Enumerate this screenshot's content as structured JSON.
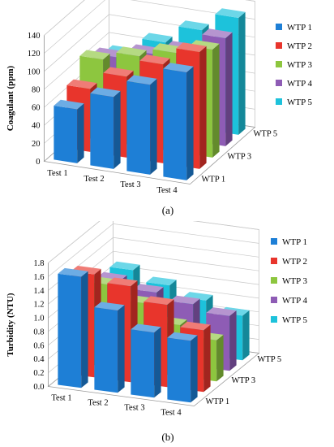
{
  "series_colors": {
    "WTP 1": "#1E7FD6",
    "WTP 2": "#E8352C",
    "WTP 3": "#8DC63F",
    "WTP 4": "#8E5CB5",
    "WTP 5": "#1DC2DB"
  },
  "chart_data": [
    {
      "type": "bar",
      "panel_label": "(a)",
      "ylabel": "Coagulant (ppm)",
      "ylim": [
        0,
        140
      ],
      "yticks": [
        0,
        20,
        40,
        60,
        80,
        100,
        120,
        140
      ],
      "ytick_labels": [
        "0",
        "20",
        "40",
        "60",
        "80",
        "100",
        "120",
        "140"
      ],
      "categories": [
        "Test 1",
        "Test 2",
        "Test 3",
        "Test 4"
      ],
      "depth_labels": [
        "WTP 1",
        "WTP 3",
        "WTP 5"
      ],
      "legend_position": "right",
      "series": [
        {
          "name": "WTP 1",
          "values": [
            60,
            80,
            100,
            120
          ]
        },
        {
          "name": "WTP 2",
          "values": [
            70,
            90,
            110,
            130
          ]
        },
        {
          "name": "WTP 3",
          "values": [
            90,
            100,
            110,
            120
          ]
        },
        {
          "name": "WTP 4",
          "values": [
            80,
            90,
            100,
            120
          ]
        },
        {
          "name": "WTP 5",
          "values": [
            70,
            90,
            110,
            130
          ]
        }
      ]
    },
    {
      "type": "bar",
      "panel_label": "(b)",
      "ylabel": "Turbidity (NTU)",
      "ylim": [
        0,
        1.8
      ],
      "yticks": [
        0,
        0.2,
        0.4,
        0.6,
        0.8,
        1.0,
        1.2,
        1.4,
        1.6,
        1.8
      ],
      "ytick_labels": [
        "0.0",
        "0.2",
        "0.4",
        "0.6",
        "0.8",
        "1.0",
        "1.2",
        "1.4",
        "1.6",
        "1.8"
      ],
      "categories": [
        "Test 1",
        "Test 2",
        "Test 3",
        "Test 4"
      ],
      "depth_labels": [
        "WTP 1",
        "WTP 3",
        "WTP 5"
      ],
      "legend_position": "right",
      "series": [
        {
          "name": "WTP 1",
          "values": [
            1.62,
            1.2,
            0.95,
            0.9
          ]
        },
        {
          "name": "WTP 2",
          "values": [
            1.5,
            1.4,
            1.2,
            0.9
          ]
        },
        {
          "name": "WTP 3",
          "values": [
            1.2,
            1.0,
            0.75,
            0.6
          ]
        },
        {
          "name": "WTP 4",
          "values": [
            1.1,
            1.0,
            0.9,
            0.8
          ]
        },
        {
          "name": "WTP 5",
          "values": [
            1.1,
            0.95,
            0.8,
            0.65
          ]
        }
      ]
    }
  ]
}
